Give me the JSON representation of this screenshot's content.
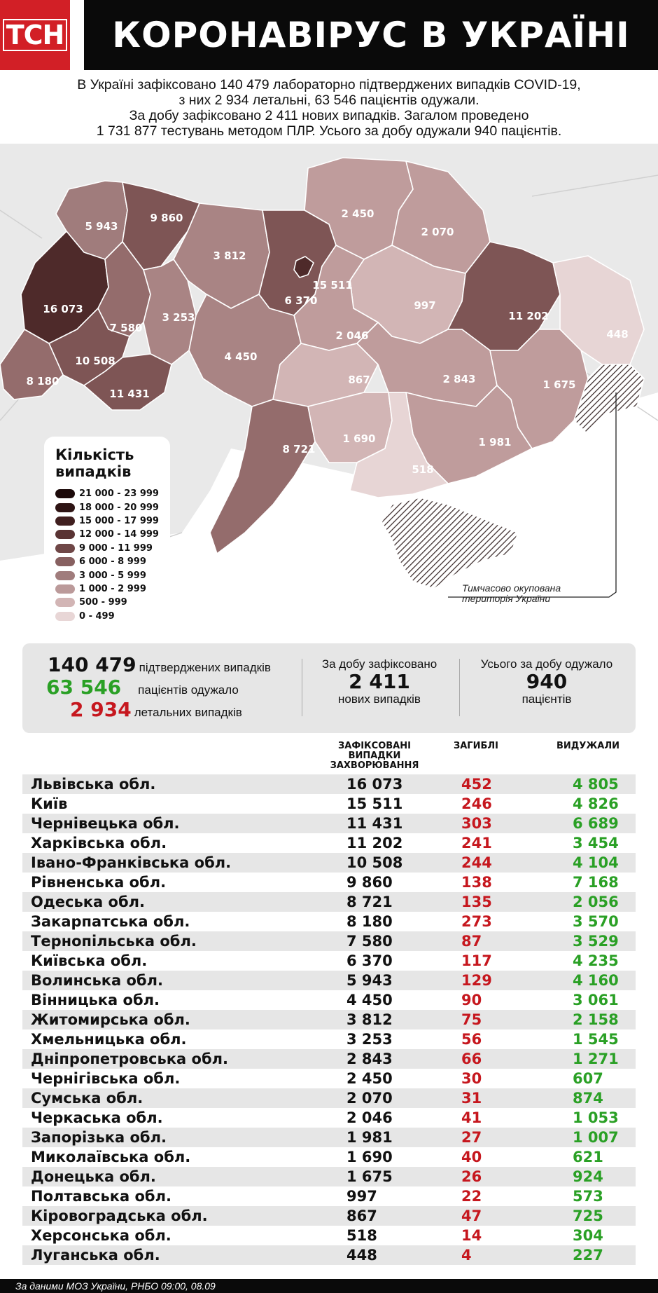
{
  "header": {
    "logo": "ТСН",
    "title": "КОРОНАВІРУС В УКРАЇНІ"
  },
  "intro": [
    "В Україні зафіксовано 140 479 лабораторно підтверджених випадків COVID-19,",
    "з них 2 934 летальні, 63 546 пацієнтів одужали.",
    "За добу зафіксовано 2 411 нових випадків. Загалом проведено",
    "1 731 877 тестувань методом ПЛР. Усього за добу одужали 940 пацієнтів."
  ],
  "map": {
    "labels": [
      "5 943",
      "9 860",
      "3 812",
      "2 450",
      "2 070",
      "16 073",
      "7 580",
      "3 253",
      "6 370",
      "15 511",
      "997",
      "11 202",
      "448",
      "2 046",
      "10 508",
      "4 450",
      "8 180",
      "11 431",
      "867",
      "2 843",
      "1 675",
      "8 721",
      "1 690",
      "1 981",
      "518"
    ],
    "occupied_note": "Тимчасово окупована територія України",
    "colors": {
      "bin1": "#e7d5d5",
      "bin2": "#d2b5b5",
      "bin3": "#bf9c9c",
      "bin4": "#a98484",
      "bin5": "#946c6c",
      "bin6": "#7e5555",
      "bin8": "#4e2a2a",
      "bin9": "#2e1414"
    }
  },
  "legend": {
    "title_line1": "Кількість",
    "title_line2": "випадків",
    "items": [
      {
        "label": "21 000 - 23 999",
        "color": "#1c0a0a"
      },
      {
        "label": "18 000 - 20 999",
        "color": "#2e1414"
      },
      {
        "label": "15 000 - 17 999",
        "color": "#401f1f"
      },
      {
        "label": "12 000 - 14 999",
        "color": "#5a3434"
      },
      {
        "label": "9 000 - 11 999",
        "color": "#6f4747"
      },
      {
        "label": "6 000 - 8 999",
        "color": "#876060"
      },
      {
        "label": "3 000 - 5 999",
        "color": "#a07c7c"
      },
      {
        "label": "1 000 - 2 999",
        "color": "#bb9a9a"
      },
      {
        "label": "500 - 999",
        "color": "#d2b5b5"
      },
      {
        "label": "0 - 499",
        "color": "#e8d6d6"
      }
    ]
  },
  "summary": {
    "confirmed_num": "140 479",
    "confirmed_text": "підтверджених випадків",
    "recovered_num": "63 546",
    "recovered_text": "пацієнтів одужало",
    "deaths_num": "2 934",
    "deaths_text": "летальних випадків",
    "daily_label": "За добу зафіксовано",
    "daily_num": "2 411",
    "daily_sub": "нових випадків",
    "rec_label": "Усього за добу одужало",
    "rec_num": "940",
    "rec_sub": "пацієнтів"
  },
  "table": {
    "col_cases_1": "ЗАФІКСОВАНІ",
    "col_cases_2": "ВИПАДКИ",
    "col_cases_3": "ЗАХВОРЮВАННЯ",
    "col_deaths": "ЗАГИБЛІ",
    "col_recovered": "ВИДУЖАЛИ",
    "rows": [
      {
        "name": "Львівська обл.",
        "cases": "16 073",
        "deaths": "452",
        "recovered": "4 805"
      },
      {
        "name": "Київ",
        "cases": "15 511",
        "deaths": "246",
        "recovered": "4 826"
      },
      {
        "name": "Чернівецька обл.",
        "cases": "11 431",
        "deaths": "303",
        "recovered": "6 689"
      },
      {
        "name": "Харківська обл.",
        "cases": "11 202",
        "deaths": "241",
        "recovered": "3 454"
      },
      {
        "name": "Івано-Франківська обл.",
        "cases": "10 508",
        "deaths": "244",
        "recovered": "4 104"
      },
      {
        "name": "Рівненська обл.",
        "cases": "9 860",
        "deaths": "138",
        "recovered": "7 168"
      },
      {
        "name": "Одеська обл.",
        "cases": "8 721",
        "deaths": "135",
        "recovered": "2 056"
      },
      {
        "name": "Закарпатська обл.",
        "cases": "8 180",
        "deaths": "273",
        "recovered": "3 570"
      },
      {
        "name": "Тернопільська обл.",
        "cases": "7 580",
        "deaths": "87",
        "recovered": "3 529"
      },
      {
        "name": "Київська обл.",
        "cases": "6 370",
        "deaths": "117",
        "recovered": "4 235"
      },
      {
        "name": "Волинська обл.",
        "cases": "5 943",
        "deaths": "129",
        "recovered": "4 160"
      },
      {
        "name": "Вінницька обл.",
        "cases": "4 450",
        "deaths": "90",
        "recovered": "3 061"
      },
      {
        "name": "Житомирська обл.",
        "cases": "3 812",
        "deaths": "75",
        "recovered": "2 158"
      },
      {
        "name": "Хмельницька обл.",
        "cases": "3 253",
        "deaths": "56",
        "recovered": "1 545"
      },
      {
        "name": "Дніпропетровська обл.",
        "cases": "2 843",
        "deaths": "66",
        "recovered": "1 271"
      },
      {
        "name": "Чернігівська обл.",
        "cases": "2 450",
        "deaths": "30",
        "recovered": "607"
      },
      {
        "name": "Сумська обл.",
        "cases": "2 070",
        "deaths": "31",
        "recovered": "874"
      },
      {
        "name": "Черкаська обл.",
        "cases": "2 046",
        "deaths": "41",
        "recovered": "1 053"
      },
      {
        "name": "Запорізька обл.",
        "cases": "1 981",
        "deaths": "27",
        "recovered": "1 007"
      },
      {
        "name": "Миколаївська обл.",
        "cases": "1 690",
        "deaths": "40",
        "recovered": "621"
      },
      {
        "name": "Донецька обл.",
        "cases": "1 675",
        "deaths": "26",
        "recovered": "924"
      },
      {
        "name": "Полтавська обл.",
        "cases": "997",
        "deaths": "22",
        "recovered": "573"
      },
      {
        "name": "Кіровоградська обл.",
        "cases": "867",
        "deaths": "47",
        "recovered": "725"
      },
      {
        "name": "Херсонська обл.",
        "cases": "518",
        "deaths": "14",
        "recovered": "304"
      },
      {
        "name": "Луганська обл.",
        "cases": "448",
        "deaths": "4",
        "recovered": "227"
      }
    ]
  },
  "footer": "За даними МОЗ України, РНБО  09:00, 08.09"
}
